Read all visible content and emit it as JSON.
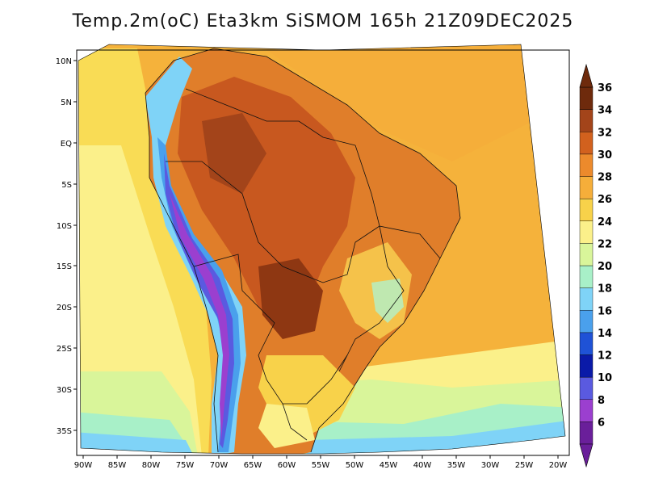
{
  "title": "Temp.2m(oC) Eta3km SiSMOM 165h 21Z09DEC2025",
  "map": {
    "lat_ticks": [
      "10N",
      "5N",
      "EQ",
      "5S",
      "10S",
      "15S",
      "20S",
      "25S",
      "30S",
      "35S"
    ],
    "lon_ticks": [
      "90W",
      "85W",
      "80W",
      "75W",
      "70W",
      "65W",
      "60W",
      "55W",
      "50W",
      "45W",
      "40W",
      "35W",
      "30W",
      "25W",
      "20W"
    ],
    "variable": "2 m air temperature",
    "units": "oC"
  },
  "colorbar": {
    "labels": [
      "36",
      "34",
      "32",
      "30",
      "28",
      "26",
      "24",
      "22",
      "20",
      "18",
      "16",
      "14",
      "12",
      "10",
      "8",
      "6"
    ],
    "colors": [
      "#6e2a0c",
      "#a3441a",
      "#d2611e",
      "#ec8a2c",
      "#f5ae3a",
      "#f8d24a",
      "#fbf08a",
      "#d9f59a",
      "#a8f0c8",
      "#7fd3f7",
      "#4aa0ec",
      "#1f52d6",
      "#0a1aa8",
      "#5a5ae0",
      "#9b3fcf",
      "#6a1f9a"
    ]
  }
}
